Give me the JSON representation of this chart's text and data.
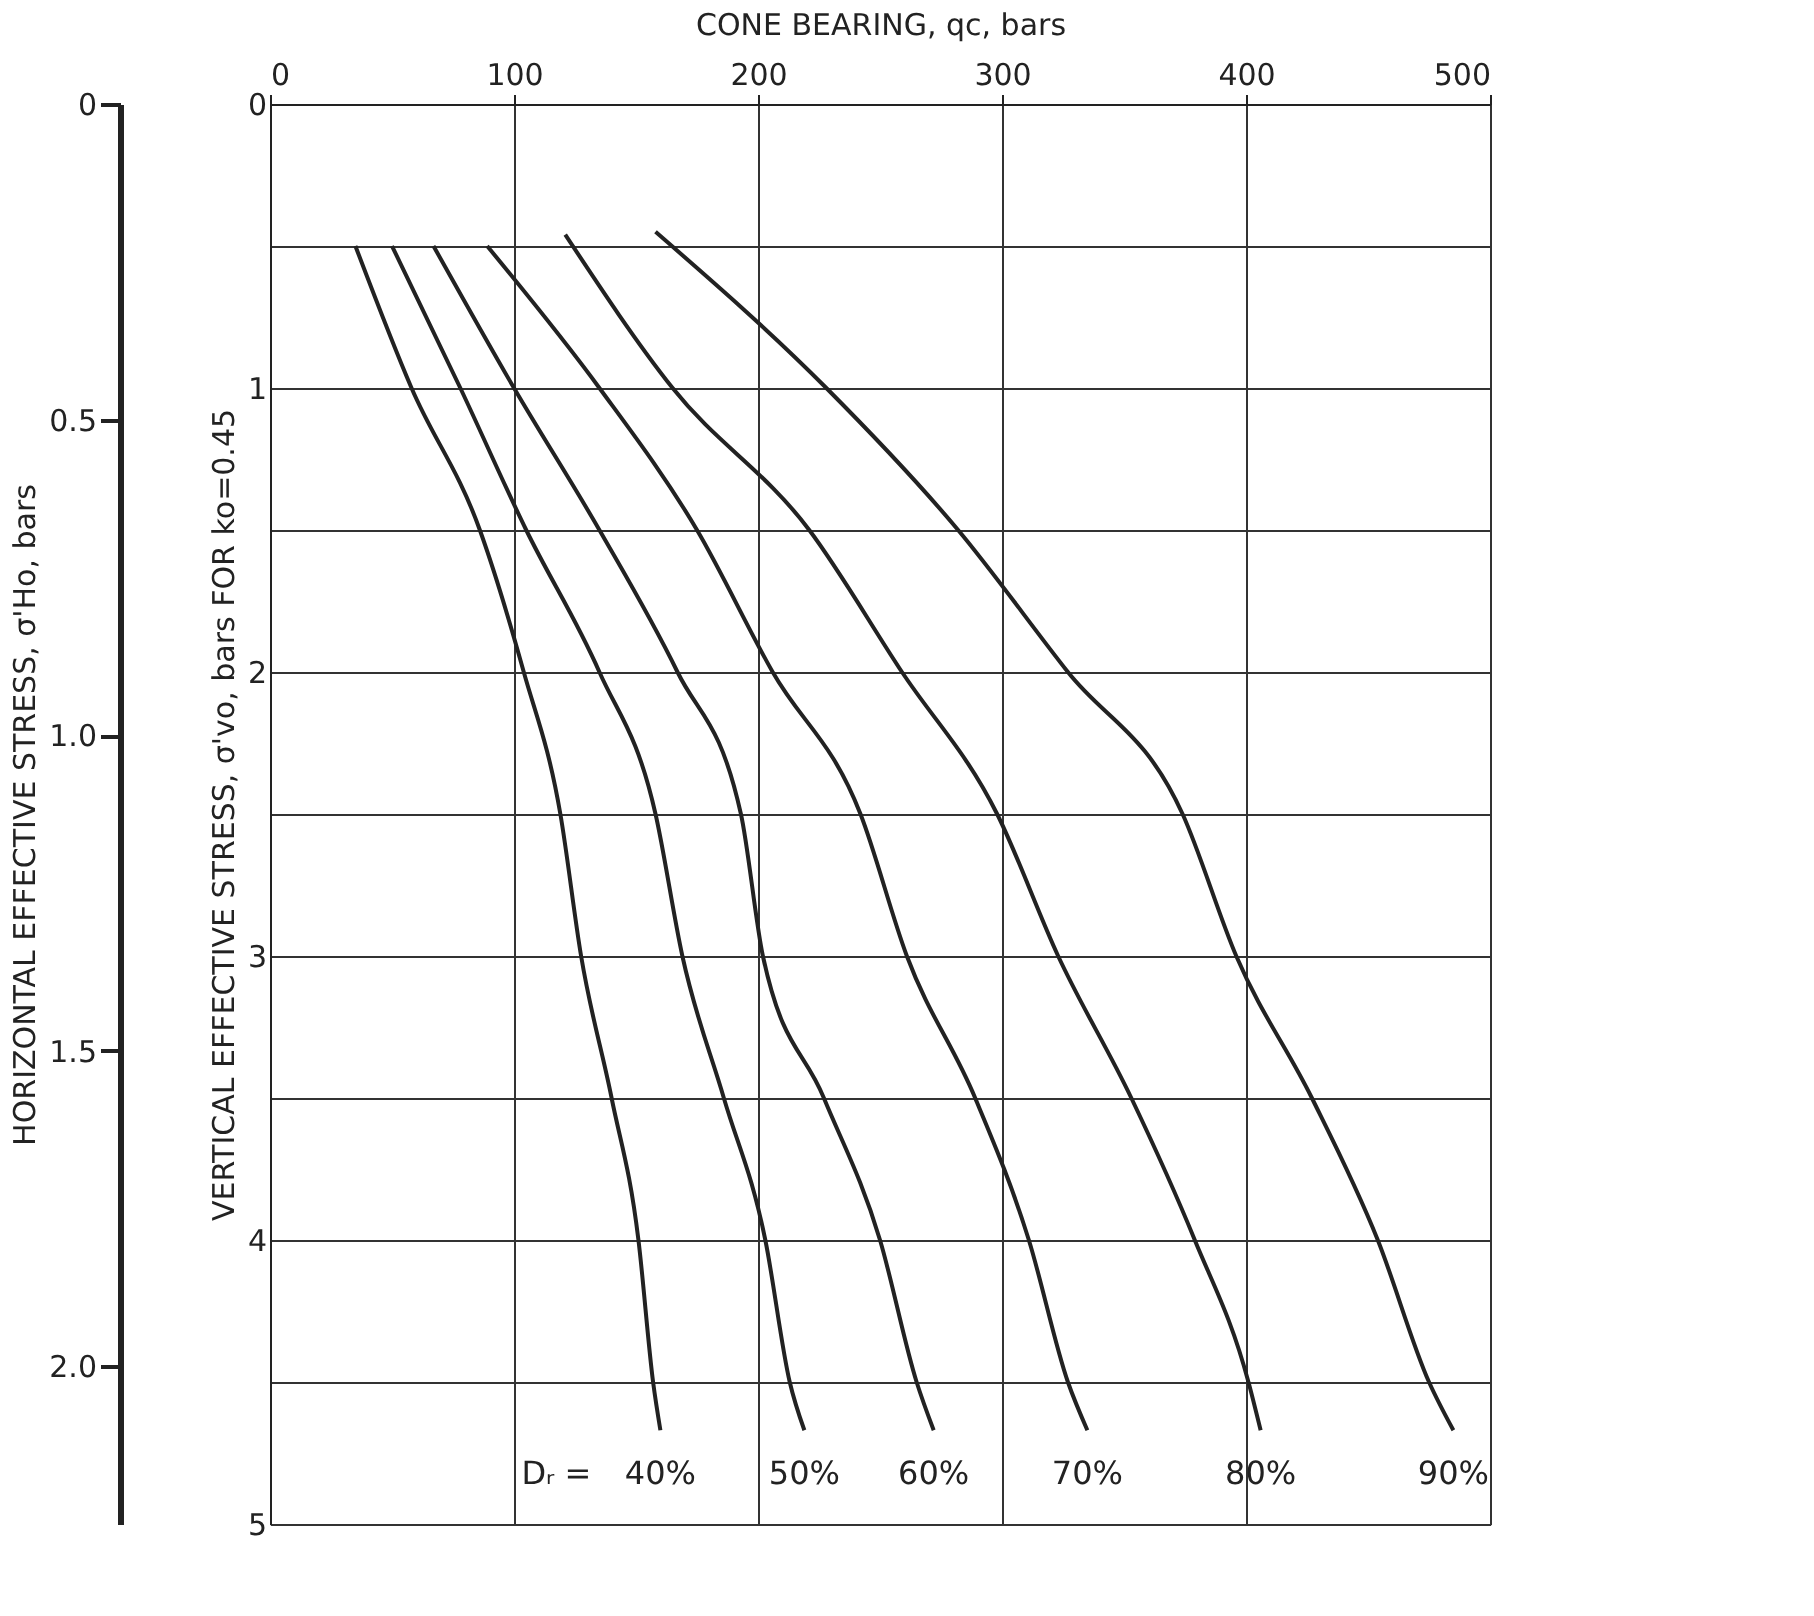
{
  "chart_data": {
    "type": "line",
    "xlabel": "CONE BEARING, qc, bars",
    "ylabel": "VERTICAL EFFECTIVE STRESS, σ'vo, bars   FOR ko=0.45",
    "y2label": "HORIZONTAL EFFECTIVE STRESS, σ'Ho, bars",
    "xlim": [
      0,
      500
    ],
    "xticks": [
      0,
      100,
      200,
      300,
      400,
      500
    ],
    "ylim": [
      5,
      0
    ],
    "yticks": [
      0,
      {
        "value": 0.5,
        "label": null
      },
      1,
      {
        "value": 1.5,
        "label": null
      },
      2,
      {
        "value": 2.5,
        "label": null
      },
      3,
      {
        "value": 3.5,
        "label": null
      },
      4,
      {
        "value": 4.5,
        "label": null
      },
      5
    ],
    "y2lim": [
      2.25,
      0
    ],
    "y2ticks": [
      0,
      0.5,
      {
        "value": 1.0,
        "label": "1.0"
      },
      1.5,
      {
        "value": 2.0,
        "label": "2.0"
      }
    ],
    "grid": true,
    "legend": false,
    "marker": "none",
    "line_style": "solid",
    "annotations": [
      "Dᵣ ="
    ],
    "series": [
      {
        "name": "40%",
        "color": "#222222",
        "x": [
          35,
          58,
          86,
          104,
          119,
          127.5,
          140,
          151,
          157,
          160
        ],
        "values": [
          0.5,
          1,
          1.5,
          2,
          2.5,
          3,
          3.5,
          4,
          4.5,
          4.67
        ]
      },
      {
        "name": "50%",
        "color": "#222222",
        "x": [
          50,
          78,
          105,
          135,
          158,
          169,
          186,
          203,
          213,
          219
        ],
        "values": [
          0.5,
          1,
          1.5,
          2,
          2.5,
          3,
          3.5,
          4,
          4.5,
          4.67
        ]
      },
      {
        "name": "60%",
        "color": "#222222",
        "x": [
          67,
          100,
          135,
          167,
          193,
          202,
          227,
          250,
          265,
          272
        ],
        "values": [
          0.5,
          1,
          1.5,
          2,
          2.5,
          3,
          3.5,
          4,
          4.5,
          4.67
        ]
      },
      {
        "name": "70%",
        "color": "#222222",
        "x": [
          89,
          135,
          175,
          206,
          242,
          261,
          289,
          311,
          327,
          335
        ],
        "values": [
          0.5,
          1,
          1.5,
          2,
          2.5,
          3,
          3.5,
          4,
          4.5,
          4.67
        ]
      },
      {
        "name": "80%",
        "color": "#222222",
        "x": [
          121,
          165,
          221,
          259,
          298,
          323,
          353,
          379,
          401,
          406
        ],
        "values": [
          0.46,
          1,
          1.5,
          2,
          2.5,
          3,
          3.5,
          4,
          4.5,
          4.67
        ]
      },
      {
        "name": "90%",
        "color": "#222222",
        "x": [
          158,
          228,
          282,
          327,
          374,
          396,
          427,
          454,
          475,
          485
        ],
        "values": [
          0.45,
          1,
          1.5,
          2,
          2.5,
          3,
          3.5,
          4,
          4.5,
          4.67
        ]
      }
    ]
  }
}
